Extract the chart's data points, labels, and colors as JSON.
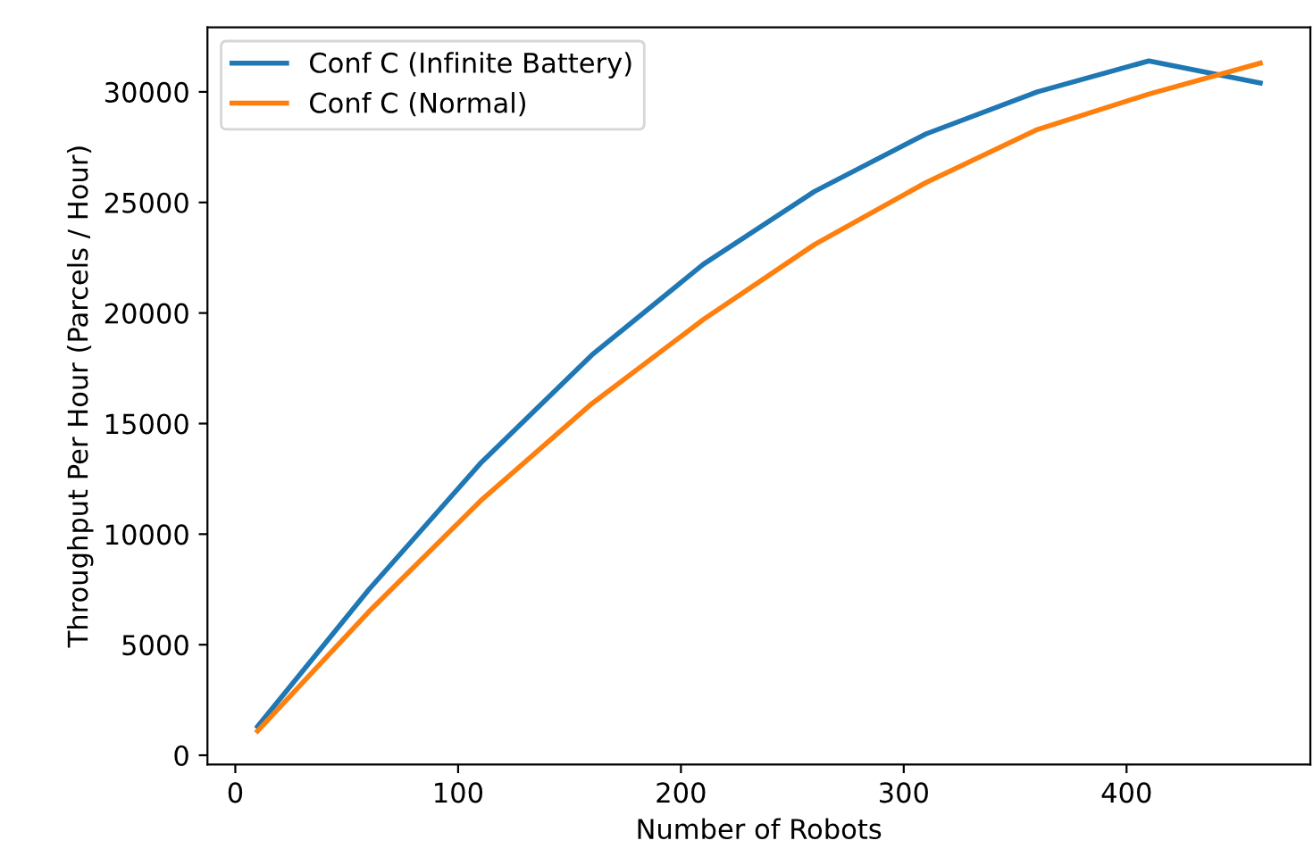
{
  "chart_data": {
    "type": "line",
    "xlabel": "Number of Robots",
    "ylabel": "Throughput Per Hour (Parcels / Hour)",
    "x": [
      10,
      60,
      110,
      160,
      210,
      260,
      310,
      360,
      410,
      460
    ],
    "series": [
      {
        "name": "Conf C (Infinite Battery)",
        "color": "#1f77b4",
        "values": [
          1300,
          7500,
          13200,
          18100,
          22200,
          25500,
          28100,
          30000,
          31400,
          30400
        ]
      },
      {
        "name": "Conf C (Normal)",
        "color": "#ff7f0e",
        "values": [
          1100,
          6500,
          11500,
          15900,
          19700,
          23100,
          25900,
          28300,
          29900,
          31300
        ]
      }
    ],
    "xlim": [
      -12.5,
      482.5
    ],
    "ylim": [
      -415,
      32915
    ],
    "xticks": [
      0,
      100,
      200,
      300,
      400
    ],
    "yticks": [
      0,
      5000,
      10000,
      15000,
      20000,
      25000,
      30000
    ],
    "legend": "upper left",
    "grid": false,
    "marker": "none",
    "line_style": "solid"
  }
}
